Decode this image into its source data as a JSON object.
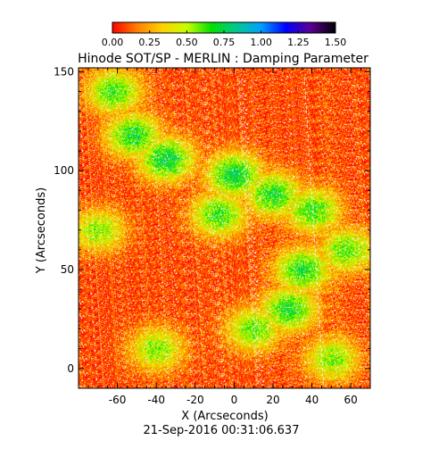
{
  "chart_data": {
    "type": "heatmap",
    "title": "Hinode SOT/SP - MERLIN : Damping Parameter",
    "xlabel": "X (Arcseconds)",
    "ylabel": "Y (Arcseconds)",
    "timestamp": "21-Sep-2016 00:31:06.637",
    "colorbar": {
      "range": [
        0.0,
        1.5
      ],
      "tick_values": [
        0.0,
        0.25,
        0.5,
        0.75,
        1.0,
        1.25,
        1.5
      ],
      "tick_labels": [
        "0.00",
        "0.25",
        "0.50",
        "0.75",
        "1.00",
        "1.25",
        "1.50"
      ],
      "colormap_stops": [
        "#000000",
        "#5a0090",
        "#0000ff",
        "#00a0ff",
        "#00c890",
        "#00e000",
        "#c8ff00",
        "#ffd000",
        "#ff8000",
        "#ff0000"
      ]
    },
    "xlim": [
      -80,
      70
    ],
    "ylim": [
      -10,
      152
    ],
    "xticks": [
      -60,
      -40,
      -20,
      0,
      20,
      40,
      60
    ],
    "xtick_labels": [
      "-60",
      "-40",
      "-20",
      "0",
      "20",
      "40",
      "60"
    ],
    "yticks": [
      0,
      50,
      100,
      150
    ],
    "ytick_labels": [
      "0",
      "50",
      "100",
      "150"
    ],
    "value_summary": {
      "background": 0.1,
      "enhanced_regions": [
        {
          "x": -62,
          "y": 140,
          "level": 0.55
        },
        {
          "x": -52,
          "y": 118,
          "level": 0.6
        },
        {
          "x": -35,
          "y": 106,
          "level": 0.65
        },
        {
          "x": 0,
          "y": 98,
          "level": 0.65
        },
        {
          "x": -8,
          "y": 78,
          "level": 0.55
        },
        {
          "x": 20,
          "y": 88,
          "level": 0.6
        },
        {
          "x": 40,
          "y": 80,
          "level": 0.55
        },
        {
          "x": 58,
          "y": 60,
          "level": 0.5
        },
        {
          "x": 35,
          "y": 50,
          "level": 0.6
        },
        {
          "x": 28,
          "y": 30,
          "level": 0.6
        },
        {
          "x": 10,
          "y": 20,
          "level": 0.5
        },
        {
          "x": -70,
          "y": 70,
          "level": 0.45
        },
        {
          "x": -40,
          "y": 10,
          "level": 0.45
        },
        {
          "x": 50,
          "y": 5,
          "level": 0.45
        }
      ]
    }
  }
}
